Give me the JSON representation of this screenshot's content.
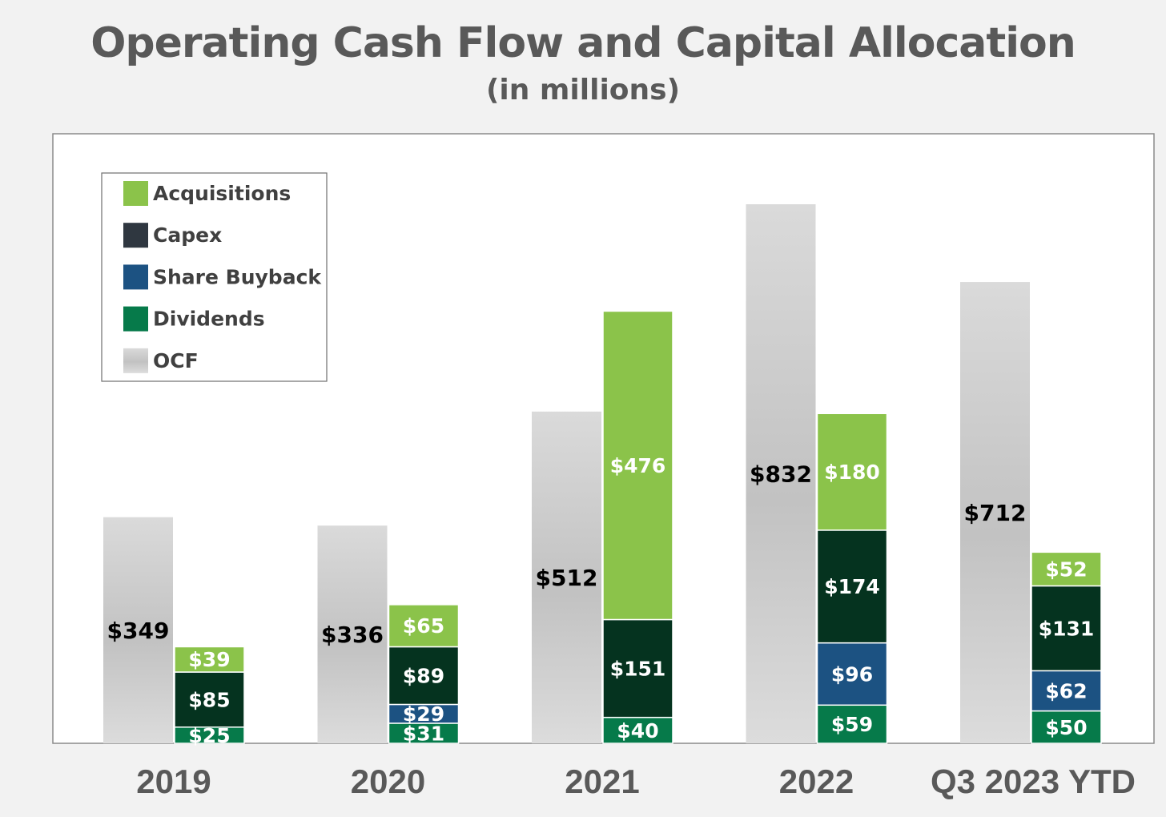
{
  "chart_data": {
    "type": "bar",
    "title": "Operating Cash Flow and Capital Allocation",
    "subtitle": "(in millions)",
    "xlabel": "",
    "ylabel": "",
    "ylim": [
      0,
      880
    ],
    "grid": false,
    "legend_position": "top-left",
    "categories": [
      "2019",
      "2020",
      "2021",
      "2022",
      "Q3 2023 YTD"
    ],
    "ocf": {
      "name": "OCF",
      "values": [
        349,
        336,
        512,
        832,
        712
      ],
      "labels": [
        "$349",
        "$336",
        "$512",
        "$832",
        "$712"
      ]
    },
    "series": [
      {
        "name": "Dividends",
        "color": "#067a4a",
        "values": [
          25,
          31,
          40,
          59,
          50
        ],
        "labels": [
          "$25",
          "$31",
          "$40",
          "$59",
          "$50"
        ]
      },
      {
        "name": "Share Buyback",
        "color": "#1c5282",
        "values": [
          0,
          29,
          0,
          96,
          62
        ],
        "labels": [
          "",
          "$29",
          "",
          "$96",
          "$62"
        ]
      },
      {
        "name": "Capex",
        "color": "#05331f",
        "values": [
          85,
          89,
          151,
          174,
          131
        ],
        "labels": [
          "$85",
          "$89",
          "$151",
          "$174",
          "$131"
        ]
      },
      {
        "name": "Acquisitions",
        "color": "#8bc34a",
        "values": [
          39,
          65,
          476,
          180,
          52
        ],
        "labels": [
          "$39",
          "$65",
          "$476",
          "$180",
          "$52"
        ]
      }
    ],
    "legend": [
      {
        "name": "Acquisitions",
        "color": "#8bc34a"
      },
      {
        "name": "Capex",
        "color": "#2f3740"
      },
      {
        "name": "Share Buyback",
        "color": "#1c5282"
      },
      {
        "name": "Dividends",
        "color": "#067a4a"
      },
      {
        "name": "OCF",
        "color": "#c6c6c6"
      }
    ]
  }
}
